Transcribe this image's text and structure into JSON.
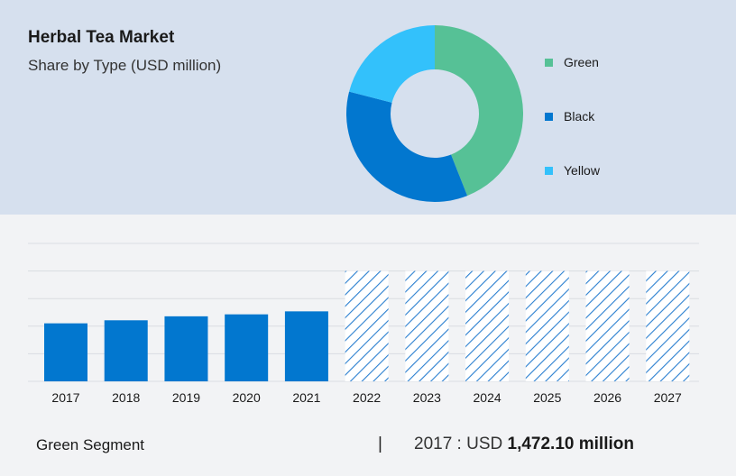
{
  "header": {
    "title": "Herbal Tea Market",
    "subtitle": "Share by Type (USD million)"
  },
  "colors": {
    "green": "#56c196",
    "black": "#0277cf",
    "yellow": "#33c1fb",
    "bar": "#0277cf",
    "forecast_hatch": "#2a7fd0",
    "grid": "#d9dce2"
  },
  "chart_data": [
    {
      "type": "pie",
      "donut": true,
      "title": "",
      "slices": [
        {
          "label": "Green",
          "value": 44,
          "color": "#56c196"
        },
        {
          "label": "Black",
          "value": 35,
          "color": "#0277cf"
        },
        {
          "label": "Yellow",
          "value": 21,
          "color": "#33c1fb"
        }
      ],
      "legend": [
        "Green",
        "Black",
        "Yellow"
      ],
      "legend_position": "right"
    },
    {
      "type": "bar",
      "title": "",
      "categories": [
        "2017",
        "2018",
        "2019",
        "2020",
        "2021",
        "2022",
        "2023",
        "2024",
        "2025",
        "2026",
        "2027"
      ],
      "values": [
        1472.1,
        1549,
        1650,
        1700,
        1776,
        null,
        null,
        null,
        null,
        null,
        null
      ],
      "forecast_categories": [
        "2022",
        "2023",
        "2024",
        "2025",
        "2026",
        "2027"
      ],
      "ylim": [
        0,
        3500
      ],
      "grid": true,
      "xlabel": "",
      "ylabel": ""
    }
  ],
  "footer": {
    "segment_label": "Green Segment",
    "separator": "|",
    "value_prefix": "2017 : USD ",
    "value_bold": "1,472.10 million"
  }
}
